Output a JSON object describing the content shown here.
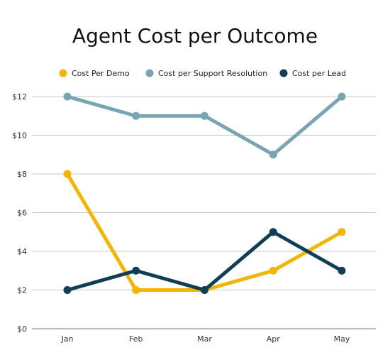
{
  "chart_data": {
    "type": "line",
    "title": "Agent Cost per Outcome",
    "categories": [
      "Jan",
      "Feb",
      "Mar",
      "Apr",
      "May"
    ],
    "y_ticks": [
      "$0",
      "$2",
      "$4",
      "$6",
      "$8",
      "$10",
      "$12"
    ],
    "ylim": [
      0,
      12
    ],
    "grid": true,
    "legend_position": "top",
    "series": [
      {
        "name": "Cost Per Demo",
        "color": "#F5B400",
        "values": [
          8,
          2,
          2,
          3,
          5
        ]
      },
      {
        "name": "Cost per Support Resolution",
        "color": "#77A5B1",
        "values": [
          12,
          11,
          11,
          9,
          12
        ]
      },
      {
        "name": "Cost per Lead",
        "color": "#0D3F56",
        "values": [
          2,
          3,
          2,
          5,
          3
        ]
      }
    ]
  }
}
